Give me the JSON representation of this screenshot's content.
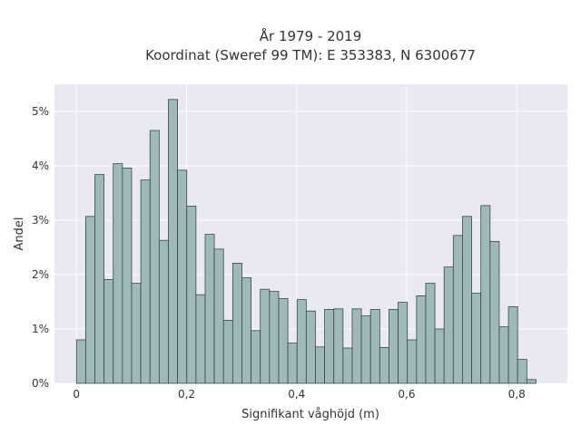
{
  "chart_data": {
    "type": "bar",
    "title": "År 1979 - 2019",
    "subtitle": "Koordinat (Sweref 99 TM): E 353383, N 6300677",
    "xlabel": "Signifikant våghöjd (m)",
    "ylabel": "Andel",
    "xlim": [
      -0.04,
      0.892
    ],
    "ylim": [
      0,
      5.5
    ],
    "x_ticks": [
      0,
      0.2,
      0.4,
      0.6,
      0.8
    ],
    "x_tick_labels": [
      "0",
      "0,2",
      "0,4",
      "0,6",
      "0,8"
    ],
    "y_ticks": [
      0,
      1,
      2,
      3,
      4,
      5
    ],
    "y_tick_labels": [
      "0%",
      "1%",
      "2%",
      "3%",
      "4%",
      "5%"
    ],
    "bin_width": 0.0167,
    "bin_start": 0,
    "values": [
      0.8,
      3.07,
      3.84,
      1.91,
      4.04,
      3.96,
      1.84,
      3.74,
      4.65,
      2.63,
      5.22,
      3.92,
      3.26,
      1.63,
      2.74,
      2.47,
      1.16,
      2.21,
      1.94,
      0.97,
      1.73,
      1.69,
      1.56,
      0.74,
      1.54,
      1.33,
      0.67,
      1.36,
      1.37,
      0.65,
      1.37,
      1.24,
      1.36,
      0.66,
      1.36,
      1.49,
      0.8,
      1.61,
      1.84,
      1.0,
      2.14,
      2.72,
      3.07,
      1.66,
      3.27,
      2.61,
      1.04,
      1.41,
      0.44,
      0.07
    ],
    "grid": true,
    "colors": {
      "bar_fill": "#9fb8b8",
      "bar_edge": "#3a4a4a",
      "plot_bg": "#e9e9f2"
    }
  }
}
